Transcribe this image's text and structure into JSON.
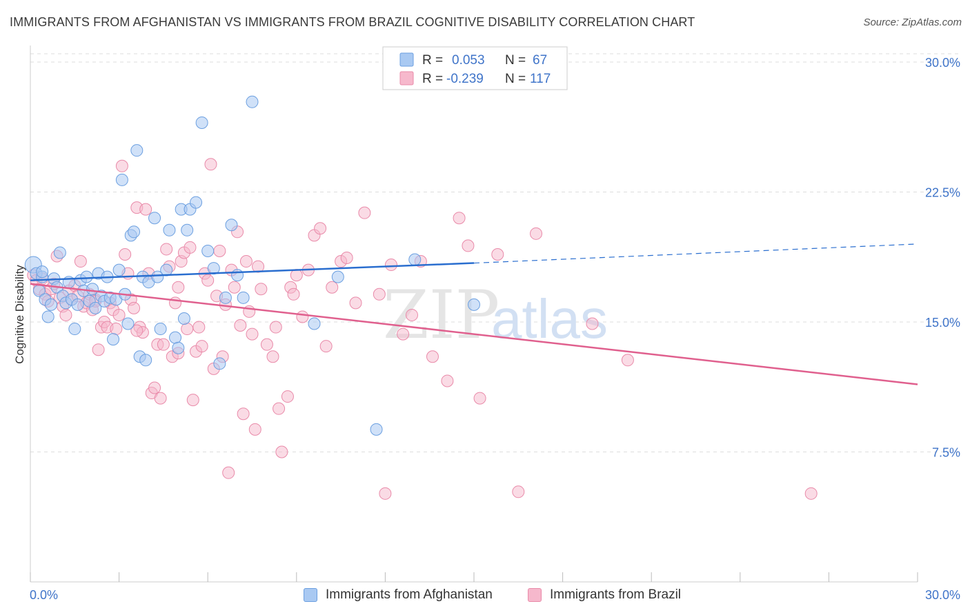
{
  "title": "IMMIGRANTS FROM AFGHANISTAN VS IMMIGRANTS FROM BRAZIL COGNITIVE DISABILITY CORRELATION CHART",
  "source": "Source: ZipAtlas.com",
  "watermark": {
    "zip": "ZIP",
    "atlas": "atlas"
  },
  "colors": {
    "blue_fill": "#a9c9f2",
    "blue_stroke": "#6b9fe0",
    "blue_line": "#2a6ecf",
    "pink_fill": "#f6b8cc",
    "pink_stroke": "#e98aa9",
    "pink_line": "#e0608e",
    "axis_text": "#3f74c9",
    "grid": "#dddddd"
  },
  "stats_legend": {
    "rows": [
      {
        "r_label": "R =",
        "r_value": "0.053",
        "n_label": "N =",
        "n_value": "67",
        "series": "blue"
      },
      {
        "r_label": "R =",
        "r_value": "-0.239",
        "n_label": "N =",
        "n_value": "117",
        "series": "pink"
      }
    ]
  },
  "chart_data": {
    "type": "scatter",
    "title": "IMMIGRANTS FROM AFGHANISTAN VS IMMIGRANTS FROM BRAZIL COGNITIVE DISABILITY CORRELATION CHART",
    "xlabel": "",
    "ylabel": "Cognitive Disability",
    "xlim": [
      0,
      30
    ],
    "ylim": [
      0,
      30
    ],
    "x_tick_labels": [
      "0.0%",
      "30.0%"
    ],
    "y_ticks": [
      7.5,
      15.0,
      22.5,
      30.0
    ],
    "y_tick_labels": [
      "7.5%",
      "15.0%",
      "22.5%",
      "30.0%"
    ],
    "grid": "horizontal dashed",
    "legend_position": "bottom-center",
    "series": [
      {
        "name": "Immigrants from Afghanistan",
        "color": "#a9c9f2",
        "R": 0.053,
        "N": 67,
        "trend": {
          "x": [
            0,
            15
          ],
          "y": [
            17.4,
            18.4
          ],
          "dashed_extension": {
            "x": [
              15,
              30
            ],
            "y": [
              18.4,
              19.5
            ]
          }
        },
        "points": [
          [
            0.1,
            18.3
          ],
          [
            0.2,
            17.8
          ],
          [
            0.3,
            16.8
          ],
          [
            0.4,
            17.6
          ],
          [
            0.5,
            16.3
          ],
          [
            0.6,
            15.3
          ],
          [
            0.7,
            16.0
          ],
          [
            0.8,
            17.5
          ],
          [
            0.9,
            17.0
          ],
          [
            1.0,
            19.0
          ],
          [
            1.1,
            16.5
          ],
          [
            1.2,
            16.1
          ],
          [
            1.3,
            17.3
          ],
          [
            1.4,
            16.3
          ],
          [
            1.5,
            14.6
          ],
          [
            1.6,
            16.0
          ],
          [
            1.7,
            17.4
          ],
          [
            1.8,
            16.8
          ],
          [
            1.9,
            17.6
          ],
          [
            2.0,
            16.2
          ],
          [
            2.1,
            16.9
          ],
          [
            2.2,
            15.8
          ],
          [
            2.3,
            17.8
          ],
          [
            2.4,
            16.5
          ],
          [
            2.5,
            16.2
          ],
          [
            2.6,
            17.6
          ],
          [
            2.7,
            16.4
          ],
          [
            2.8,
            14.0
          ],
          [
            2.9,
            16.3
          ],
          [
            3.0,
            18.0
          ],
          [
            3.1,
            23.2
          ],
          [
            3.2,
            16.6
          ],
          [
            3.3,
            14.9
          ],
          [
            3.4,
            20.0
          ],
          [
            3.5,
            20.2
          ],
          [
            3.6,
            24.9
          ],
          [
            3.7,
            13.0
          ],
          [
            3.8,
            17.6
          ],
          [
            3.9,
            12.8
          ],
          [
            4.0,
            17.3
          ],
          [
            4.2,
            21.0
          ],
          [
            4.3,
            17.6
          ],
          [
            4.4,
            14.6
          ],
          [
            4.6,
            18.0
          ],
          [
            4.7,
            20.3
          ],
          [
            4.9,
            14.1
          ],
          [
            5.0,
            13.5
          ],
          [
            5.1,
            21.5
          ],
          [
            5.2,
            15.2
          ],
          [
            5.3,
            20.3
          ],
          [
            5.4,
            21.5
          ],
          [
            5.6,
            21.9
          ],
          [
            5.8,
            26.5
          ],
          [
            6.0,
            19.1
          ],
          [
            6.2,
            18.1
          ],
          [
            6.4,
            12.6
          ],
          [
            6.6,
            16.4
          ],
          [
            6.8,
            20.6
          ],
          [
            7.0,
            17.7
          ],
          [
            7.2,
            16.4
          ],
          [
            7.5,
            27.7
          ],
          [
            9.6,
            14.9
          ],
          [
            10.4,
            17.6
          ],
          [
            11.7,
            8.8
          ],
          [
            13.0,
            18.6
          ],
          [
            15.0,
            16.0
          ],
          [
            0.4,
            17.9
          ]
        ]
      },
      {
        "name": "Immigrants from Brazil",
        "color": "#f6b8cc",
        "R": -0.239,
        "N": 117,
        "trend": {
          "x": [
            0,
            30
          ],
          "y": [
            17.2,
            11.4
          ]
        },
        "points": [
          [
            0.1,
            17.7
          ],
          [
            0.2,
            17.4
          ],
          [
            0.3,
            16.9
          ],
          [
            0.4,
            17.5
          ],
          [
            0.5,
            16.6
          ],
          [
            0.6,
            16.2
          ],
          [
            0.7,
            16.9
          ],
          [
            0.8,
            17.2
          ],
          [
            0.9,
            18.8
          ],
          [
            1.0,
            16.4
          ],
          [
            1.1,
            15.9
          ],
          [
            1.2,
            15.4
          ],
          [
            1.3,
            16.8
          ],
          [
            1.4,
            16.3
          ],
          [
            1.5,
            17.1
          ],
          [
            1.6,
            16.5
          ],
          [
            1.7,
            18.5
          ],
          [
            1.8,
            15.9
          ],
          [
            1.9,
            16.1
          ],
          [
            2.0,
            16.6
          ],
          [
            2.1,
            15.7
          ],
          [
            2.2,
            16.3
          ],
          [
            2.3,
            13.4
          ],
          [
            2.4,
            14.7
          ],
          [
            2.5,
            15.0
          ],
          [
            2.6,
            14.7
          ],
          [
            2.7,
            16.1
          ],
          [
            2.8,
            15.7
          ],
          [
            2.9,
            14.6
          ],
          [
            3.0,
            15.4
          ],
          [
            3.1,
            24.0
          ],
          [
            3.2,
            18.9
          ],
          [
            3.3,
            17.8
          ],
          [
            3.4,
            16.3
          ],
          [
            3.5,
            15.8
          ],
          [
            3.6,
            21.6
          ],
          [
            3.7,
            14.7
          ],
          [
            3.8,
            14.4
          ],
          [
            3.9,
            21.5
          ],
          [
            4.0,
            17.8
          ],
          [
            4.1,
            10.9
          ],
          [
            4.2,
            11.2
          ],
          [
            4.3,
            13.7
          ],
          [
            4.4,
            10.6
          ],
          [
            4.5,
            13.7
          ],
          [
            4.6,
            19.2
          ],
          [
            4.7,
            18.2
          ],
          [
            4.8,
            13.0
          ],
          [
            4.9,
            16.1
          ],
          [
            5.0,
            17.0
          ],
          [
            5.1,
            18.5
          ],
          [
            5.2,
            19.0
          ],
          [
            5.3,
            14.6
          ],
          [
            5.4,
            19.3
          ],
          [
            5.5,
            10.5
          ],
          [
            5.6,
            13.3
          ],
          [
            5.7,
            14.7
          ],
          [
            5.8,
            13.6
          ],
          [
            5.9,
            17.8
          ],
          [
            6.0,
            17.4
          ],
          [
            6.1,
            24.1
          ],
          [
            6.2,
            12.3
          ],
          [
            6.3,
            16.5
          ],
          [
            6.4,
            19.1
          ],
          [
            6.5,
            13.0
          ],
          [
            6.6,
            16.0
          ],
          [
            6.7,
            6.3
          ],
          [
            6.8,
            18.0
          ],
          [
            6.9,
            17.0
          ],
          [
            7.0,
            20.2
          ],
          [
            7.1,
            14.8
          ],
          [
            7.2,
            9.7
          ],
          [
            7.3,
            18.5
          ],
          [
            7.4,
            15.6
          ],
          [
            7.5,
            14.3
          ],
          [
            7.6,
            8.8
          ],
          [
            7.7,
            18.2
          ],
          [
            7.8,
            16.9
          ],
          [
            8.0,
            13.7
          ],
          [
            8.2,
            13.0
          ],
          [
            8.3,
            14.7
          ],
          [
            8.4,
            10.0
          ],
          [
            8.5,
            7.5
          ],
          [
            8.7,
            10.7
          ],
          [
            8.8,
            17.0
          ],
          [
            8.9,
            16.6
          ],
          [
            9.0,
            17.7
          ],
          [
            9.2,
            15.3
          ],
          [
            9.4,
            18.0
          ],
          [
            9.6,
            20.0
          ],
          [
            9.8,
            20.4
          ],
          [
            10.0,
            13.6
          ],
          [
            10.2,
            17.0
          ],
          [
            10.5,
            18.5
          ],
          [
            10.7,
            18.7
          ],
          [
            11.0,
            16.1
          ],
          [
            11.3,
            21.3
          ],
          [
            11.8,
            16.6
          ],
          [
            12.2,
            18.3
          ],
          [
            12.6,
            14.3
          ],
          [
            12.9,
            15.4
          ],
          [
            13.2,
            18.5
          ],
          [
            13.6,
            13.0
          ],
          [
            14.1,
            11.6
          ],
          [
            14.5,
            21.0
          ],
          [
            14.8,
            19.4
          ],
          [
            15.2,
            10.6
          ],
          [
            15.8,
            18.9
          ],
          [
            16.5,
            5.2
          ],
          [
            17.1,
            20.1
          ],
          [
            19.0,
            14.9
          ],
          [
            20.2,
            12.8
          ],
          [
            26.4,
            5.1
          ],
          [
            12.0,
            5.1
          ],
          [
            3.6,
            14.5
          ],
          [
            2.2,
            16.2
          ],
          [
            5.0,
            13.2
          ]
        ]
      }
    ]
  },
  "legend_bottom": [
    {
      "label": "Immigrants from Afghanistan",
      "series": "blue"
    },
    {
      "label": "Immigrants from Brazil",
      "series": "pink"
    }
  ]
}
